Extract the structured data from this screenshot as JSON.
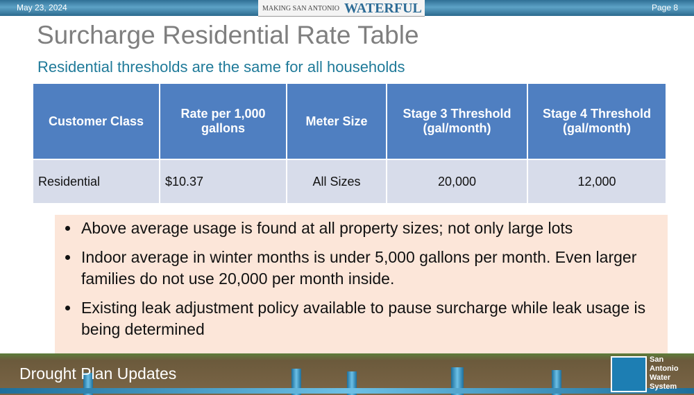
{
  "header": {
    "date": "May 23, 2024",
    "banner_small": "MAKING SAN ANTONIO",
    "banner_large": "WATERFUL",
    "page": "Page 8"
  },
  "title": "Surcharge Residential Rate Table",
  "subtitle": "Residential thresholds are the same for all households",
  "table": {
    "columns": [
      "Customer Class",
      "Rate per 1,000 gallons",
      "Meter Size",
      "Stage 3 Threshold (gal/month)",
      "Stage 4 Threshold (gal/month)"
    ],
    "rows": [
      [
        "Residential",
        "$10.37",
        "All Sizes",
        "20,000",
        "12,000"
      ]
    ]
  },
  "bullets": [
    "Above average usage is found at all property sizes; not only large lots",
    "Indoor average in winter months is under 5,000 gallons per month. Even larger families do not use 20,000 per month inside.",
    "Existing leak adjustment policy available to pause surcharge while leak usage is being determined"
  ],
  "footer": {
    "section": "Drought Plan Updates",
    "logo_text": [
      "San",
      "Antonio",
      "Water",
      "System"
    ]
  }
}
